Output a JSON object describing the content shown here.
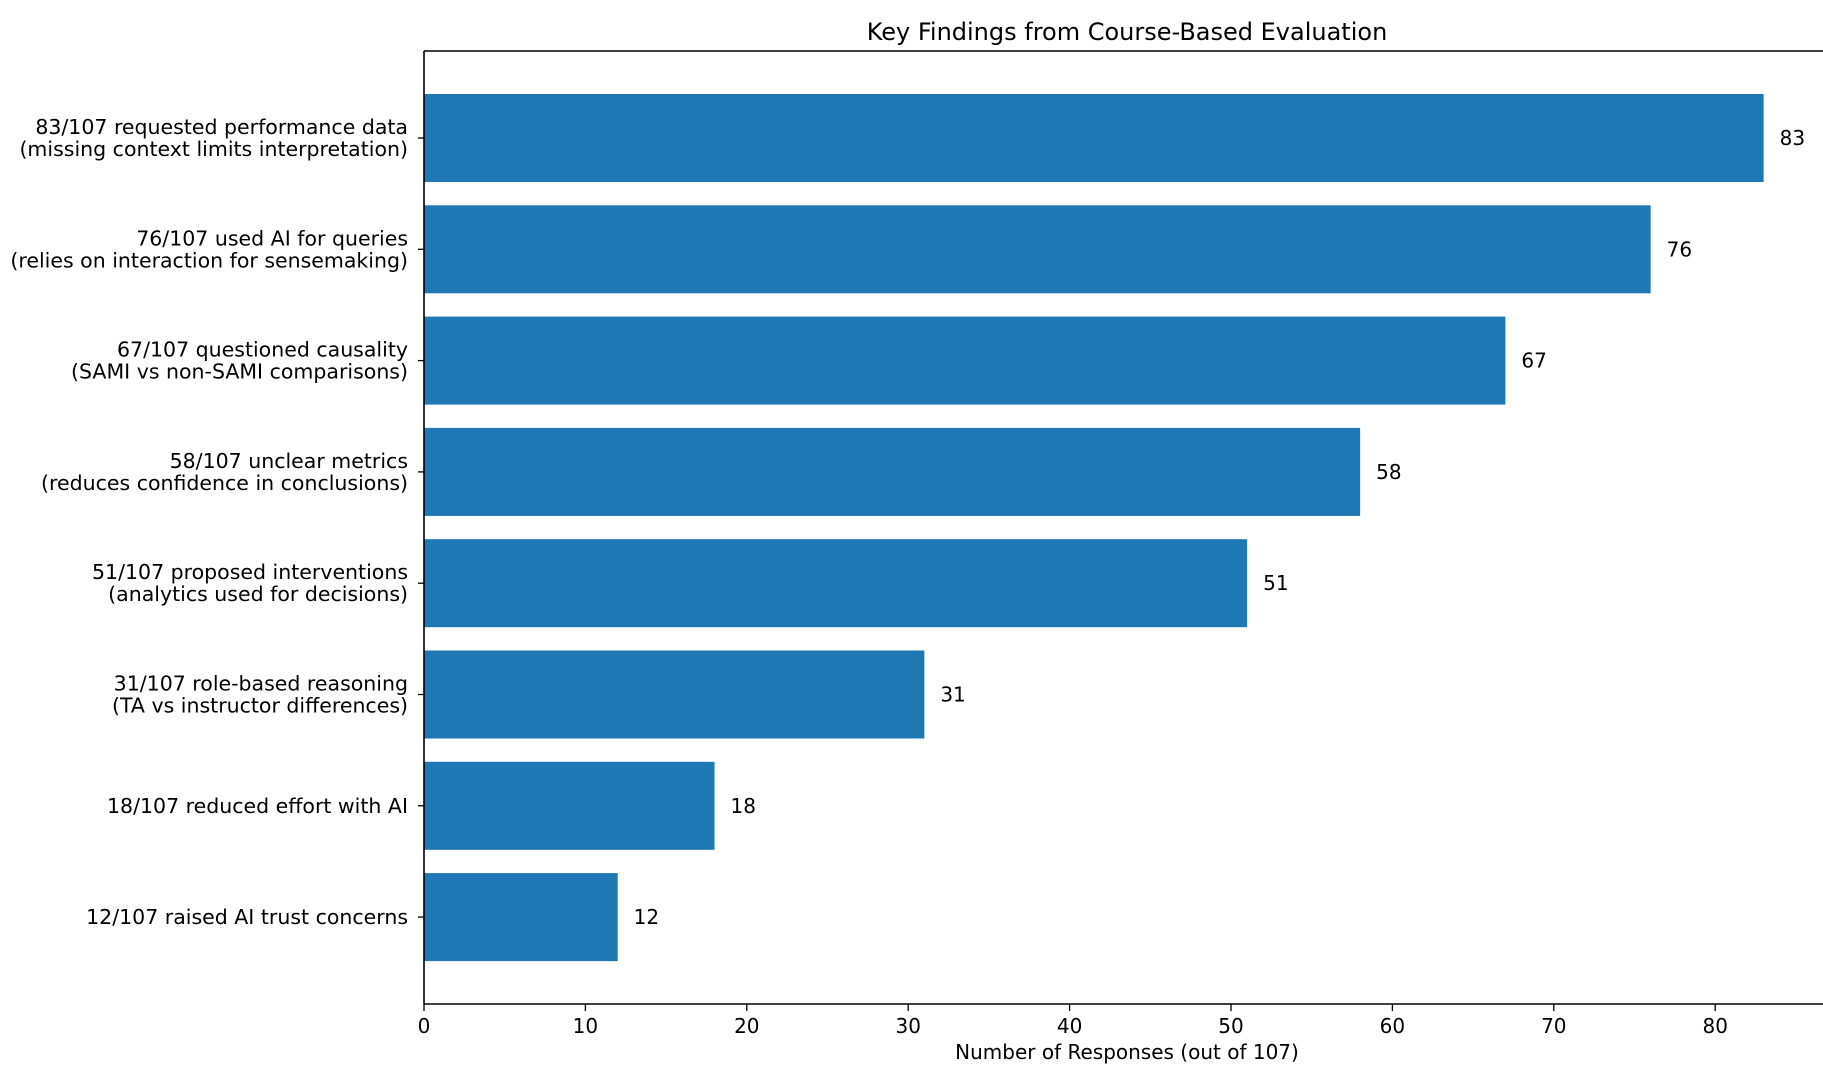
{
  "chart_data": {
    "type": "bar",
    "orientation": "horizontal",
    "title": "Key Findings from Course-Based Evaluation",
    "xlabel": "Number of Responses (out of 107)",
    "ylabel": "",
    "xlim": [
      0,
      87.15
    ],
    "xticks": [
      0,
      10,
      20,
      30,
      40,
      50,
      60,
      70,
      80
    ],
    "grid": false,
    "bar_color": "#1f77b4",
    "categories": [
      [
        "83/107 requested performance data",
        "(missing context limits interpretation)"
      ],
      [
        "76/107 used AI for queries",
        "(relies on interaction for sensemaking)"
      ],
      [
        "67/107 questioned causality",
        "(SAMI vs non-SAMI comparisons)"
      ],
      [
        "58/107 unclear metrics",
        "(reduces confidence in conclusions)"
      ],
      [
        "51/107 proposed interventions",
        "(analytics used for decisions)"
      ],
      [
        "31/107 role-based reasoning",
        "(TA vs instructor differences)"
      ],
      [
        "18/107 reduced effort with AI"
      ],
      [
        "12/107 raised AI trust concerns"
      ]
    ],
    "values": [
      83,
      76,
      67,
      58,
      51,
      31,
      18,
      12
    ]
  }
}
